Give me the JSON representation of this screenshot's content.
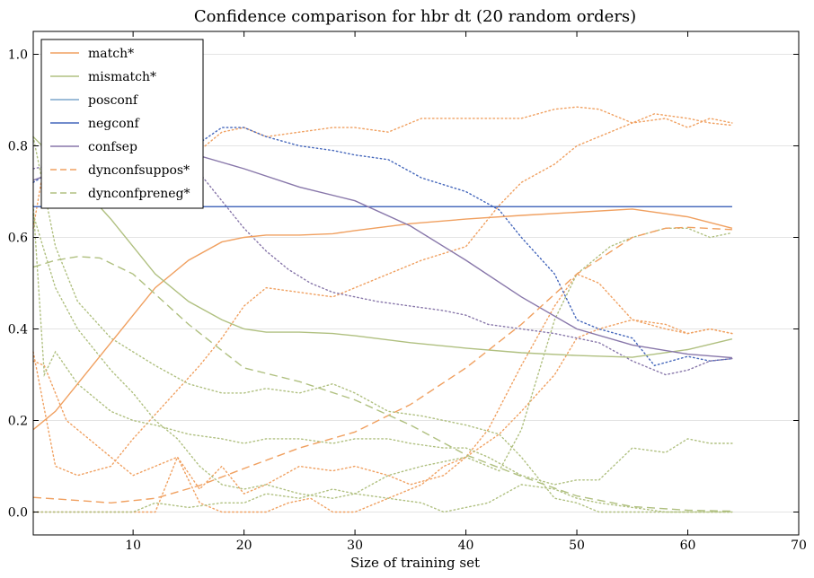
{
  "chart_data": {
    "type": "line",
    "title": "Confidence comparison for hbr dt (20 random orders)",
    "xlabel": "Size of training set",
    "ylabel": "",
    "xlim": [
      1,
      70
    ],
    "ylim": [
      -0.05,
      1.05
    ],
    "x_ticks": [
      10,
      20,
      30,
      40,
      50,
      60,
      70
    ],
    "y_ticks": [
      0.0,
      0.2,
      0.4,
      0.6,
      0.8,
      1.0
    ],
    "x_tick_labels": [
      "10",
      "20",
      "30",
      "40",
      "50",
      "60",
      "70"
    ],
    "y_tick_labels": [
      "0.0",
      "0.2",
      "0.4",
      "0.6",
      "0.8",
      "1.0"
    ],
    "grid": "horizontal",
    "legend_position": "top-left",
    "colors": {
      "orange": "#f0a060",
      "green": "#b0c080",
      "lightblue": "#7ba6cc",
      "blue": "#4466bb",
      "purple": "#8877aa"
    },
    "series": [
      {
        "name": "match*",
        "style": "solid",
        "color": "#f0a060",
        "x": [
          1,
          3,
          5,
          8,
          10,
          12,
          15,
          18,
          20,
          22,
          25,
          28,
          30,
          35,
          40,
          45,
          50,
          55,
          60,
          64
        ],
        "y": [
          0.18,
          0.22,
          0.28,
          0.37,
          0.43,
          0.49,
          0.55,
          0.59,
          0.6,
          0.605,
          0.605,
          0.608,
          0.615,
          0.63,
          0.64,
          0.648,
          0.655,
          0.662,
          0.645,
          0.62
        ]
      },
      {
        "name": "mismatch*",
        "style": "solid",
        "color": "#b0c080",
        "x": [
          1,
          3,
          5,
          8,
          10,
          12,
          15,
          18,
          20,
          22,
          25,
          28,
          30,
          35,
          40,
          45,
          50,
          55,
          60,
          64
        ],
        "y": [
          0.82,
          0.77,
          0.72,
          0.64,
          0.58,
          0.52,
          0.46,
          0.42,
          0.4,
          0.393,
          0.393,
          0.39,
          0.385,
          0.37,
          0.358,
          0.348,
          0.342,
          0.338,
          0.355,
          0.378
        ]
      },
      {
        "name": "posconf",
        "style": "solid",
        "color": "#7ba6cc",
        "x": [
          1,
          64
        ],
        "y": [
          0.667,
          0.667
        ]
      },
      {
        "name": "negconf",
        "style": "solid",
        "color": "#4466bb",
        "x": [
          1,
          64
        ],
        "y": [
          0.667,
          0.667
        ]
      },
      {
        "name": "confsep",
        "style": "solid",
        "color": "#8877aa",
        "x": [
          1,
          5,
          10,
          15,
          20,
          25,
          30,
          35,
          40,
          45,
          50,
          55,
          60,
          64
        ],
        "y": [
          0.725,
          0.76,
          0.79,
          0.785,
          0.75,
          0.71,
          0.68,
          0.625,
          0.55,
          0.47,
          0.4,
          0.365,
          0.345,
          0.337
        ]
      },
      {
        "name": "dynconfsuppos*",
        "style": "dashed",
        "color": "#f0a060",
        "x": [
          1,
          4,
          8,
          12,
          16,
          20,
          25,
          30,
          35,
          40,
          45,
          50,
          55,
          58,
          60,
          64
        ],
        "y": [
          0.032,
          0.027,
          0.02,
          0.03,
          0.058,
          0.095,
          0.14,
          0.175,
          0.235,
          0.315,
          0.41,
          0.52,
          0.6,
          0.62,
          0.622,
          0.617
        ]
      },
      {
        "name": "dynconfpreneg*",
        "style": "dashed",
        "color": "#b0c080",
        "x": [
          1,
          3,
          5,
          7,
          10,
          15,
          20,
          25,
          30,
          35,
          40,
          45,
          50,
          55,
          60,
          64
        ],
        "y": [
          0.535,
          0.55,
          0.558,
          0.555,
          0.52,
          0.41,
          0.315,
          0.285,
          0.245,
          0.19,
          0.125,
          0.078,
          0.035,
          0.012,
          0.004,
          0.002
        ]
      }
    ],
    "background_series": [
      {
        "style": "dotted",
        "color": "#f0a060",
        "x": [
          1,
          2,
          3,
          5,
          8,
          10,
          12,
          15,
          16,
          18,
          20,
          22,
          25,
          28,
          30,
          33,
          36,
          40,
          45,
          48,
          50,
          52,
          55,
          57,
          60,
          62,
          64
        ],
        "y": [
          0.62,
          0.76,
          0.7,
          0.72,
          0.78,
          0.8,
          0.81,
          0.82,
          0.79,
          0.83,
          0.84,
          0.82,
          0.83,
          0.84,
          0.84,
          0.83,
          0.86,
          0.86,
          0.86,
          0.88,
          0.885,
          0.88,
          0.85,
          0.87,
          0.86,
          0.85,
          0.845
        ]
      },
      {
        "style": "dotted",
        "color": "#f0a060",
        "x": [
          1,
          3,
          5,
          8,
          10,
          13,
          16,
          18,
          20,
          22,
          25,
          28,
          30,
          33,
          36,
          40,
          43,
          45,
          48,
          50,
          53,
          55,
          58,
          60,
          62,
          64
        ],
        "y": [
          0.35,
          0.1,
          0.08,
          0.1,
          0.16,
          0.24,
          0.32,
          0.38,
          0.45,
          0.49,
          0.48,
          0.47,
          0.49,
          0.52,
          0.55,
          0.58,
          0.67,
          0.72,
          0.76,
          0.8,
          0.83,
          0.85,
          0.86,
          0.84,
          0.86,
          0.85
        ]
      },
      {
        "style": "dotted",
        "color": "#f0a060",
        "x": [
          1,
          2,
          4,
          6,
          8,
          10,
          12,
          14,
          16,
          18,
          20,
          22,
          25,
          28,
          30,
          33,
          35,
          38,
          40,
          42,
          45,
          48,
          50,
          52,
          55,
          58,
          60,
          62,
          64
        ],
        "y": [
          0.33,
          0.32,
          0.2,
          0.16,
          0.12,
          0.08,
          0.1,
          0.12,
          0.05,
          0.1,
          0.04,
          0.06,
          0.1,
          0.09,
          0.1,
          0.08,
          0.06,
          0.08,
          0.12,
          0.18,
          0.32,
          0.45,
          0.52,
          0.5,
          0.42,
          0.41,
          0.39,
          0.4,
          0.39
        ]
      },
      {
        "style": "dotted",
        "color": "#f0a060",
        "x": [
          1,
          3,
          5,
          8,
          10,
          12,
          14,
          16,
          18,
          20,
          22,
          24,
          26,
          28,
          30,
          32,
          34,
          36,
          38,
          40,
          43,
          45,
          48,
          50,
          52,
          55,
          58,
          60,
          62,
          64
        ],
        "y": [
          0.0,
          0.0,
          0.0,
          0.0,
          0.0,
          0.0,
          0.12,
          0.02,
          0.0,
          0.0,
          0.0,
          0.02,
          0.03,
          0.0,
          0.0,
          0.02,
          0.04,
          0.06,
          0.1,
          0.12,
          0.17,
          0.22,
          0.3,
          0.38,
          0.4,
          0.42,
          0.4,
          0.39,
          0.4,
          0.39
        ]
      },
      {
        "style": "dotted",
        "color": "#b0c080",
        "x": [
          1,
          2,
          3,
          5,
          8,
          10,
          12,
          15,
          18,
          20,
          22,
          25,
          28,
          30,
          33,
          35,
          38,
          40,
          42,
          45,
          48,
          50,
          52,
          55,
          58,
          60,
          62,
          64
        ],
        "y": [
          0.67,
          0.3,
          0.35,
          0.28,
          0.22,
          0.2,
          0.19,
          0.17,
          0.16,
          0.15,
          0.16,
          0.16,
          0.15,
          0.16,
          0.16,
          0.15,
          0.14,
          0.14,
          0.12,
          0.08,
          0.06,
          0.07,
          0.07,
          0.14,
          0.13,
          0.16,
          0.15,
          0.15
        ]
      },
      {
        "style": "dotted",
        "color": "#b0c080",
        "x": [
          1,
          3,
          5,
          8,
          10,
          12,
          15,
          18,
          20,
          22,
          25,
          28,
          30,
          33,
          36,
          40,
          43,
          45,
          48,
          50,
          52,
          55,
          58,
          60,
          62,
          64
        ],
        "y": [
          0.82,
          0.58,
          0.46,
          0.38,
          0.35,
          0.32,
          0.28,
          0.26,
          0.26,
          0.27,
          0.26,
          0.28,
          0.26,
          0.22,
          0.21,
          0.19,
          0.17,
          0.12,
          0.03,
          0.02,
          0.0,
          0.0,
          0.0,
          0.0,
          0.0,
          0.0
        ]
      },
      {
        "style": "dotted",
        "color": "#b0c080",
        "x": [
          1,
          3,
          5,
          8,
          10,
          12,
          14,
          16,
          18,
          20,
          22,
          25,
          28,
          30,
          33,
          36,
          38,
          40,
          42,
          45,
          48,
          50,
          52,
          55,
          58,
          60,
          62,
          64
        ],
        "y": [
          0.65,
          0.49,
          0.4,
          0.31,
          0.26,
          0.2,
          0.16,
          0.1,
          0.06,
          0.05,
          0.06,
          0.04,
          0.03,
          0.04,
          0.03,
          0.02,
          0.0,
          0.01,
          0.02,
          0.06,
          0.05,
          0.03,
          0.02,
          0.01,
          0.0,
          0.0,
          0.0,
          0.0
        ]
      },
      {
        "style": "dotted",
        "color": "#b0c080",
        "x": [
          1,
          3,
          5,
          8,
          10,
          12,
          15,
          18,
          20,
          22,
          25,
          28,
          30,
          33,
          36,
          40,
          43,
          45,
          48,
          50,
          53,
          55,
          58,
          60,
          62,
          64
        ],
        "y": [
          0.0,
          0.0,
          0.0,
          0.0,
          0.0,
          0.02,
          0.01,
          0.02,
          0.02,
          0.04,
          0.03,
          0.05,
          0.04,
          0.08,
          0.1,
          0.12,
          0.09,
          0.18,
          0.42,
          0.52,
          0.58,
          0.6,
          0.62,
          0.62,
          0.6,
          0.61
        ]
      },
      {
        "style": "dotted",
        "color": "#4466bb",
        "x": [
          1,
          3,
          5,
          8,
          10,
          12,
          15,
          18,
          20,
          22,
          25,
          28,
          30,
          33,
          36,
          40,
          43,
          45,
          48,
          50,
          52,
          55,
          57,
          60,
          62,
          64
        ],
        "y": [
          0.72,
          0.75,
          0.77,
          0.8,
          0.81,
          0.8,
          0.79,
          0.84,
          0.84,
          0.82,
          0.8,
          0.79,
          0.78,
          0.77,
          0.73,
          0.7,
          0.66,
          0.6,
          0.52,
          0.42,
          0.4,
          0.38,
          0.32,
          0.34,
          0.33,
          0.335
        ]
      },
      {
        "style": "dotted",
        "color": "#8877aa",
        "x": [
          1,
          3,
          5,
          8,
          10,
          12,
          14,
          16,
          18,
          20,
          22,
          24,
          26,
          28,
          30,
          32,
          35,
          38,
          40,
          42,
          45,
          48,
          50,
          52,
          55,
          58,
          60,
          62,
          64
        ],
        "y": [
          0.75,
          0.76,
          0.77,
          0.8,
          0.8,
          0.79,
          0.78,
          0.74,
          0.68,
          0.62,
          0.57,
          0.53,
          0.5,
          0.48,
          0.47,
          0.46,
          0.45,
          0.44,
          0.43,
          0.41,
          0.4,
          0.39,
          0.38,
          0.37,
          0.33,
          0.3,
          0.31,
          0.33,
          0.335
        ]
      }
    ]
  }
}
